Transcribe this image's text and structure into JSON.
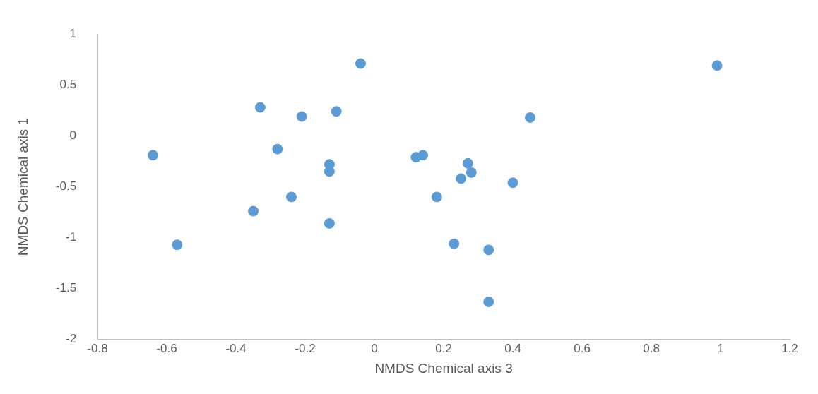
{
  "chart_data": {
    "type": "scatter",
    "xlabel": "NMDS Chemical axis 3",
    "ylabel": "NMDS Chemical axis 1",
    "x": [
      -0.64,
      -0.57,
      -0.33,
      -0.35,
      -0.28,
      -0.24,
      -0.21,
      -0.13,
      -0.13,
      -0.13,
      -0.11,
      -0.04,
      0.12,
      0.14,
      0.18,
      0.23,
      0.25,
      0.27,
      0.28,
      0.33,
      0.33,
      0.4,
      0.45,
      0.99
    ],
    "series": [
      {
        "color": "#5b9bd5",
        "values": [
          -0.19,
          -1.07,
          0.28,
          -0.74,
          -0.13,
          -0.6,
          0.19,
          -0.86,
          -0.28,
          -0.35,
          0.24,
          0.71,
          -0.21,
          -0.19,
          -0.6,
          -1.06,
          -0.42,
          -0.27,
          -0.36,
          -1.63,
          -1.12,
          -0.46,
          0.18,
          0.69
        ]
      }
    ],
    "xlim": [
      -0.8,
      1.2
    ],
    "xticks": [
      -0.8,
      -0.6,
      -0.4,
      -0.2,
      0,
      0.2,
      0.4,
      0.6,
      0.8,
      1,
      1.2
    ],
    "ylim": [
      -2,
      1
    ],
    "yticks": [
      -2,
      -1.5,
      -1,
      -0.5,
      0,
      0.5,
      1
    ],
    "grid": false,
    "legend": false,
    "marker": "circle"
  }
}
